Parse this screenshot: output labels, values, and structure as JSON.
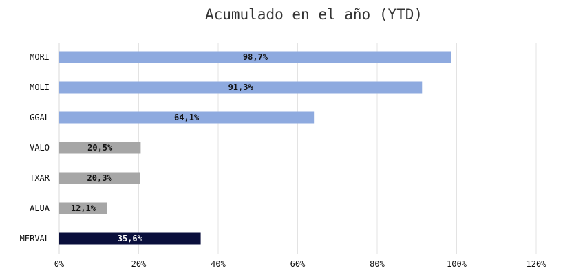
{
  "chart_data": {
    "type": "bar",
    "orientation": "horizontal",
    "title": "Acumulado en el año (YTD)",
    "xlabel": "",
    "ylabel": "",
    "categories": [
      "MORI",
      "MOLI",
      "GGAL",
      "VALO",
      "TXAR",
      "ALUA",
      "MERVAL"
    ],
    "values": [
      98.7,
      91.3,
      64.1,
      20.5,
      20.3,
      12.1,
      35.6
    ],
    "value_labels": [
      "98,7%",
      "91,3%",
      "64,1%",
      "20,5%",
      "20,3%",
      "12,1%",
      "35,6%"
    ],
    "bar_colors": [
      "#8eaadf",
      "#8eaadf",
      "#8eaadf",
      "#a6a6a6",
      "#a6a6a6",
      "#a6a6a6",
      "#0a0f3c"
    ],
    "label_colors": [
      "#111111",
      "#111111",
      "#111111",
      "#111111",
      "#111111",
      "#111111",
      "#ffffff"
    ],
    "xlim": [
      0,
      120
    ],
    "xticks": [
      0,
      20,
      40,
      60,
      80,
      100,
      120
    ],
    "xtick_labels": [
      "0%",
      "20%",
      "40%",
      "60%",
      "80%",
      "100%",
      "120%"
    ],
    "grid": "vertical",
    "legend": "none"
  }
}
